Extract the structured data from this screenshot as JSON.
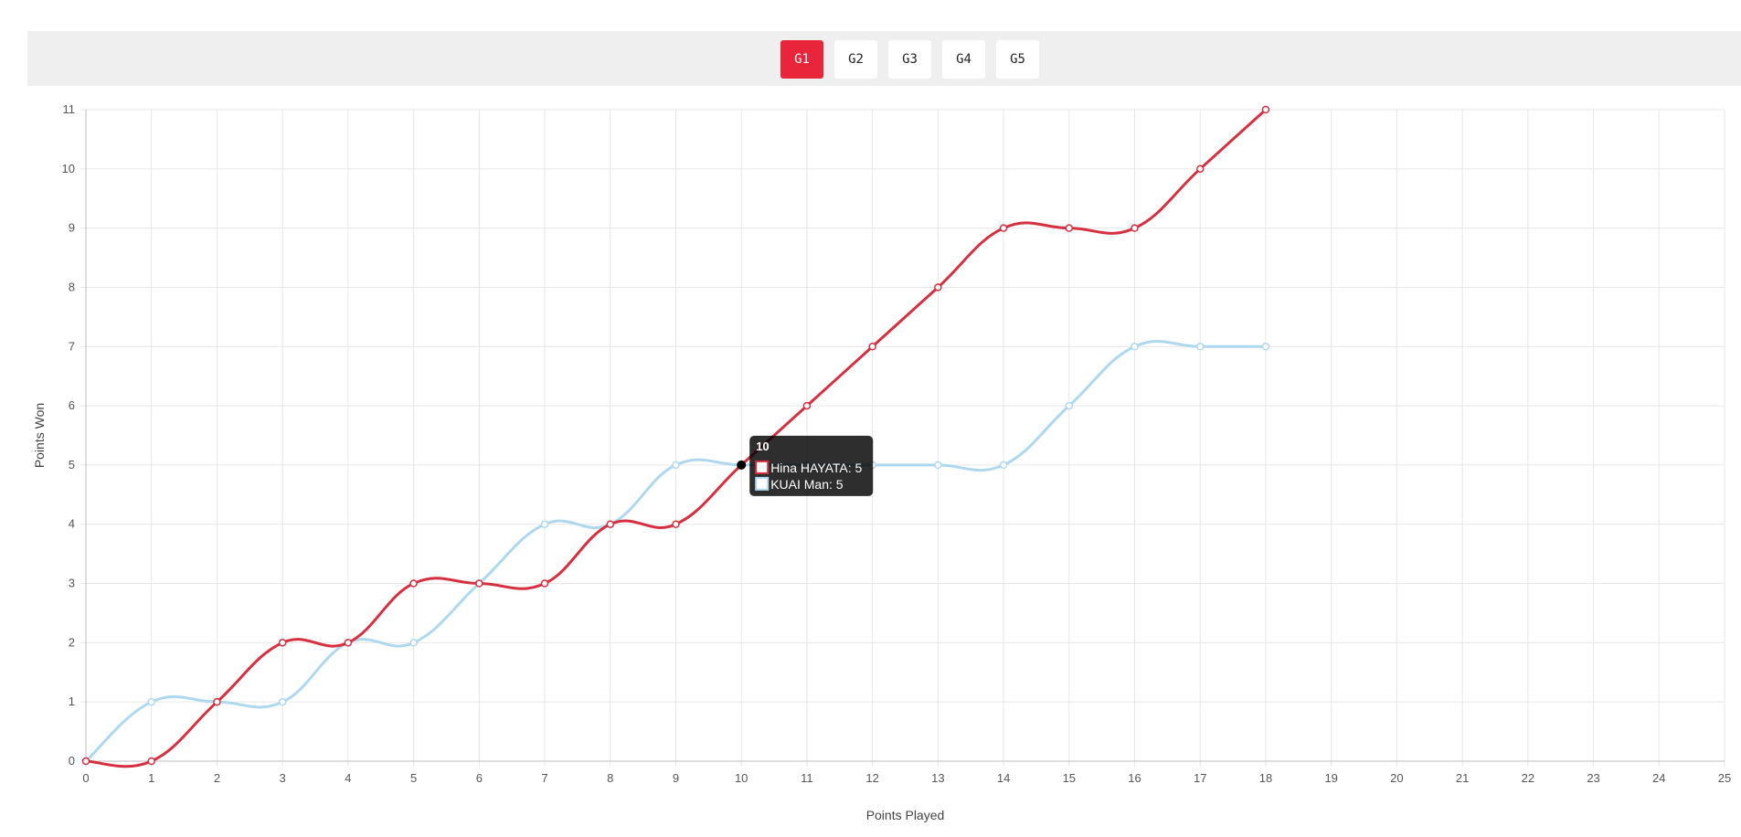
{
  "tabs": [
    {
      "label": "G1",
      "active": true
    },
    {
      "label": "G2",
      "active": false
    },
    {
      "label": "G3",
      "active": false
    },
    {
      "label": "G4",
      "active": false
    },
    {
      "label": "G5",
      "active": false
    }
  ],
  "colors": {
    "accent": "#e8253b",
    "series_red": "#d62f3f",
    "series_blue": "#aed8ef"
  },
  "chart_data": {
    "type": "line",
    "xlabel": "Points Played",
    "ylabel": "Points Won",
    "xlim": [
      0,
      25
    ],
    "ylim": [
      0,
      11
    ],
    "grid": true,
    "x": [
      0,
      1,
      2,
      3,
      4,
      5,
      6,
      7,
      8,
      9,
      10,
      11,
      12,
      13,
      14,
      15,
      16,
      17,
      18
    ],
    "series": [
      {
        "name": "Hina HAYATA",
        "color": "#d62f3f",
        "values": [
          0,
          0,
          1,
          2,
          2,
          3,
          3,
          3,
          4,
          4,
          5,
          6,
          7,
          8,
          9,
          9,
          9,
          10,
          11
        ]
      },
      {
        "name": "KUAI Man",
        "color": "#aed8ef",
        "values": [
          0,
          1,
          1,
          1,
          2,
          2,
          3,
          4,
          4,
          5,
          5,
          5,
          5,
          5,
          5,
          6,
          7,
          7,
          7
        ]
      }
    ],
    "tooltip": {
      "title": "10",
      "lines": [
        "Hina HAYATA: 5",
        "KUAI Man: 5"
      ]
    }
  }
}
